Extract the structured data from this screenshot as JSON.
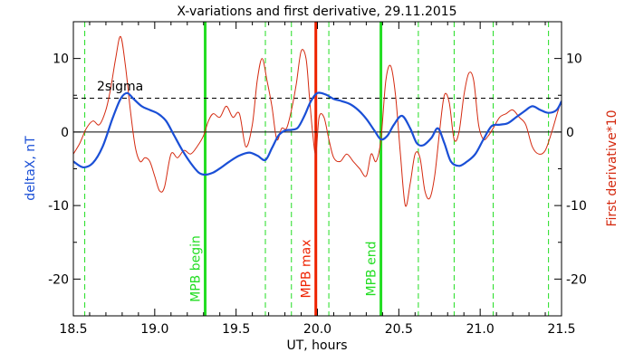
{
  "chart_data": {
    "type": "line",
    "title": "X-variations and first derivative, 29.11.2015",
    "xlabel": "UT, hours",
    "ylabel_left": "deltaX, nT",
    "ylabel_right": "First derivative*10",
    "xlim": [
      18.5,
      21.5
    ],
    "ylim": [
      -25,
      15
    ],
    "x_ticks": [
      "18.5",
      "19.0",
      "19.5",
      "20.0",
      "20.5",
      "21.0",
      "21.5"
    ],
    "y_ticks_left": [
      "-20",
      "-10",
      "0",
      "10"
    ],
    "y_ticks_right": [
      "-20",
      "-10",
      "0",
      "10"
    ],
    "threshold": {
      "label": "2sigma",
      "value": 4.6
    },
    "markers": [
      {
        "x": 19.31,
        "label": "MPB begin",
        "color": "#22dd22"
      },
      {
        "x": 19.99,
        "label": "MPB max",
        "color": "#ee2200"
      },
      {
        "x": 20.39,
        "label": "MPB end",
        "color": "#22dd22"
      }
    ],
    "dashed_verticals": [
      18.57,
      19.68,
      19.84,
      20.07,
      20.62,
      20.84,
      21.08,
      21.42
    ],
    "colors": {
      "deltaX": "#1a4fd6",
      "derivative": "#d42a10",
      "marker_green": "#22dd22",
      "marker_red": "#ee2200"
    },
    "series": [
      {
        "role": "deltaX",
        "x": [
          18.5,
          18.56,
          18.62,
          18.68,
          18.74,
          18.79,
          18.83,
          18.87,
          18.92,
          18.97,
          19.02,
          19.07,
          19.12,
          19.17,
          19.22,
          19.27,
          19.31,
          19.36,
          19.41,
          19.46,
          19.52,
          19.58,
          19.63,
          19.68,
          19.72,
          19.76,
          19.8,
          19.84,
          19.88,
          19.92,
          19.96,
          20.0,
          20.05,
          20.1,
          20.15,
          20.2,
          20.25,
          20.3,
          20.35,
          20.39,
          20.43,
          20.47,
          20.52,
          20.57,
          20.61,
          20.65,
          20.7,
          20.74,
          20.78,
          20.82,
          20.87,
          20.92,
          20.97,
          21.02,
          21.07,
          21.12,
          21.17,
          21.22,
          21.27,
          21.32,
          21.37,
          21.42,
          21.47,
          21.5
        ],
        "y": [
          -4.0,
          -4.8,
          -4.2,
          -2.0,
          1.8,
          4.5,
          5.3,
          4.5,
          3.5,
          3.0,
          2.5,
          1.5,
          -0.5,
          -2.5,
          -4.2,
          -5.5,
          -5.8,
          -5.5,
          -4.8,
          -4.0,
          -3.2,
          -2.8,
          -3.2,
          -3.8,
          -2.2,
          -0.5,
          0.2,
          0.3,
          0.6,
          2.2,
          4.2,
          5.3,
          5.1,
          4.5,
          4.2,
          3.8,
          3.0,
          1.8,
          0.2,
          -1.0,
          -0.5,
          1.0,
          2.2,
          0.5,
          -1.5,
          -1.8,
          -0.8,
          0.5,
          -1.5,
          -4.0,
          -4.6,
          -4.0,
          -3.0,
          -1.0,
          0.8,
          1.0,
          1.2,
          2.0,
          2.8,
          3.5,
          3.0,
          2.6,
          3.0,
          4.2
        ]
      },
      {
        "role": "derivative",
        "x": [
          18.5,
          18.54,
          18.58,
          18.62,
          18.66,
          18.7,
          18.73,
          18.76,
          18.79,
          18.82,
          18.85,
          18.88,
          18.91,
          18.94,
          18.97,
          19.0,
          19.03,
          19.06,
          19.1,
          19.14,
          19.18,
          19.22,
          19.26,
          19.3,
          19.33,
          19.36,
          19.4,
          19.44,
          19.48,
          19.52,
          19.56,
          19.6,
          19.63,
          19.66,
          19.69,
          19.72,
          19.75,
          19.78,
          19.81,
          19.84,
          19.87,
          19.9,
          19.93,
          19.95,
          19.97,
          19.99,
          20.01,
          20.04,
          20.07,
          20.1,
          20.14,
          20.18,
          20.22,
          20.26,
          20.3,
          20.33,
          20.36,
          20.39,
          20.42,
          20.45,
          20.48,
          20.51,
          20.54,
          20.57,
          20.6,
          20.63,
          20.66,
          20.69,
          20.72,
          20.75,
          20.78,
          20.81,
          20.84,
          20.87,
          20.9,
          20.93,
          20.96,
          20.99,
          21.02,
          21.05,
          21.08,
          21.12,
          21.16,
          21.2,
          21.24,
          21.28,
          21.32,
          21.36,
          21.4,
          21.44,
          21.48,
          21.5
        ],
        "y": [
          -3.0,
          -1.5,
          0.5,
          1.5,
          1.0,
          3.0,
          6.0,
          10.0,
          13.0,
          9.0,
          3.0,
          -2.0,
          -4.0,
          -3.5,
          -4.0,
          -6.0,
          -8.0,
          -7.5,
          -3.0,
          -3.5,
          -2.5,
          -3.0,
          -2.0,
          -0.5,
          1.5,
          2.5,
          2.0,
          3.5,
          2.0,
          2.5,
          -2.0,
          1.0,
          7.0,
          10.0,
          7.0,
          3.5,
          -1.0,
          0.5,
          0.5,
          3.0,
          6.5,
          11.0,
          10.0,
          5.0,
          0.0,
          -3.0,
          2.0,
          2.0,
          -1.0,
          -3.5,
          -4.0,
          -3.0,
          -4.0,
          -5.0,
          -6.0,
          -3.0,
          -4.0,
          -1.0,
          7.0,
          9.0,
          5.0,
          -3.0,
          -10.0,
          -7.0,
          -3.0,
          -3.5,
          -8.0,
          -9.0,
          -6.0,
          0.0,
          5.0,
          4.0,
          -1.0,
          0.0,
          5.0,
          8.0,
          7.0,
          1.0,
          -1.0,
          -0.5,
          0.5,
          2.0,
          2.5,
          3.0,
          2.0,
          1.0,
          -2.0,
          -3.0,
          -2.5,
          0.0,
          3.0,
          4.0
        ]
      }
    ]
  }
}
